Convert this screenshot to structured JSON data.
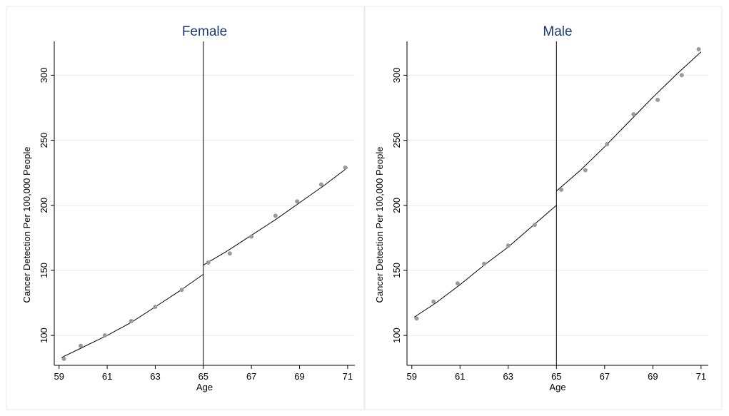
{
  "chart_data": [
    {
      "type": "scatter",
      "title": "Female",
      "xlabel": "Age",
      "ylabel": "Cancer Detection Per 100,000 People",
      "xlim": [
        58.8,
        71.3
      ],
      "ylim": [
        77,
        326
      ],
      "xticks": [
        59,
        61,
        63,
        65,
        67,
        69,
        71
      ],
      "yticks": [
        100,
        150,
        200,
        250,
        300
      ],
      "grid": true,
      "cutoff": 65,
      "points": {
        "x": [
          59.2,
          59.9,
          60.9,
          62.0,
          63.0,
          64.1,
          65.2,
          66.1,
          67.0,
          68.0,
          68.9,
          69.9,
          70.9
        ],
        "y": [
          82,
          92,
          100,
          111,
          122,
          135,
          156,
          163,
          176,
          192,
          203,
          216,
          229
        ]
      },
      "fit_segments": [
        {
          "x": [
            59.1,
            60.0,
            61.0,
            62.0,
            63.0,
            64.0,
            65.0
          ],
          "y": [
            83,
            91,
            100,
            110,
            122,
            134,
            147
          ]
        },
        {
          "x": [
            65.0,
            66.0,
            67.0,
            68.0,
            69.0,
            70.0,
            71.0
          ],
          "y": [
            154,
            165,
            177,
            189,
            202,
            215,
            229
          ]
        }
      ]
    },
    {
      "type": "scatter",
      "title": "Male",
      "xlabel": "Age",
      "ylabel": "Cancer Detection Per 100,000 People",
      "xlim": [
        58.8,
        71.3
      ],
      "ylim": [
        77,
        326
      ],
      "xticks": [
        59,
        61,
        63,
        65,
        67,
        69,
        71
      ],
      "yticks": [
        100,
        150,
        200,
        250,
        300
      ],
      "grid": true,
      "cutoff": 65,
      "points": {
        "x": [
          59.2,
          59.9,
          60.9,
          62.0,
          63.0,
          64.1,
          65.2,
          66.2,
          67.1,
          68.2,
          69.2,
          70.2,
          70.9
        ],
        "y": [
          113,
          126,
          140,
          155,
          169,
          185,
          212,
          227,
          247,
          270,
          281,
          300,
          320
        ]
      },
      "fit_segments": [
        {
          "x": [
            59.1,
            60.0,
            61.0,
            62.0,
            63.0,
            64.0,
            65.0
          ],
          "y": [
            114,
            125,
            139,
            154,
            168,
            184,
            200
          ]
        },
        {
          "x": [
            65.0,
            66.0,
            67.0,
            68.0,
            69.0,
            70.0,
            71.0
          ],
          "y": [
            211,
            227,
            245,
            264,
            283,
            301,
            318
          ]
        }
      ]
    }
  ]
}
